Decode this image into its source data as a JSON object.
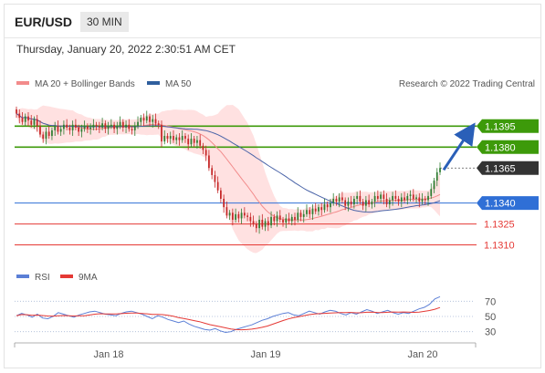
{
  "header": {
    "pair": "EUR/USD",
    "timeframe": "30 MIN",
    "datetime": "Thursday, January 20, 2022 2:30:51 AM CET"
  },
  "legend": {
    "ma20_bb": "MA 20 + Bollinger Bands",
    "ma50": "MA 50",
    "credit": "Research © 2022 Trading Central",
    "rsi": "RSI",
    "rsi_ma": "9MA"
  },
  "colors": {
    "up": "#2f7d32",
    "down": "#c62828",
    "resistance": "#3d9a0a",
    "support_blue": "#2f6fd6",
    "support_red": "#e53935",
    "current": "#333333",
    "band": "#ffc9c9",
    "ma20": "#f28b8b",
    "ma50": "#4a64a8",
    "rsi": "#5b7fd6",
    "rsi_ma": "#e53935"
  },
  "chart_data": {
    "type": "candlestick",
    "instrument": "EUR/USD",
    "interval": "30 MIN",
    "ylim": [
      1.1296,
      1.142
    ],
    "x_ticks": [
      "Jan 18",
      "Jan 19",
      "Jan 20"
    ],
    "levels": [
      {
        "value": 1.1395,
        "label": "1.1395",
        "kind": "resistance"
      },
      {
        "value": 1.138,
        "label": "1.1380",
        "kind": "resistance"
      },
      {
        "value": 1.1365,
        "label": "1.1365",
        "kind": "current"
      },
      {
        "value": 1.134,
        "label": "1.1340",
        "kind": "pivot"
      },
      {
        "value": 1.1325,
        "label": "1.1325",
        "kind": "support"
      },
      {
        "value": 1.131,
        "label": "1.1310",
        "kind": "support"
      }
    ],
    "trend_arrow": {
      "from": 1.1365,
      "to": 1.1395
    },
    "close": [
      1.1404,
      1.1401,
      1.1398,
      1.1402,
      1.1399,
      1.1396,
      1.14,
      1.1395,
      1.1389,
      1.1386,
      1.1391,
      1.1388,
      1.1392,
      1.1395,
      1.1391,
      1.1393,
      1.1396,
      1.1394,
      1.1392,
      1.1396,
      1.1394,
      1.1391,
      1.1393,
      1.1395,
      1.1393,
      1.1394,
      1.1396,
      1.1395,
      1.1394,
      1.1397,
      1.1393,
      1.1395,
      1.1396,
      1.1393,
      1.1395,
      1.1398,
      1.1394,
      1.1396,
      1.1393,
      1.1392,
      1.1395,
      1.1398,
      1.1401,
      1.1399,
      1.1402,
      1.1398,
      1.14,
      1.1397,
      1.1396,
      1.1384,
      1.1388,
      1.1386,
      1.1388,
      1.1385,
      1.1387,
      1.1385,
      1.1388,
      1.1386,
      1.1382,
      1.1386,
      1.1383,
      1.1385,
      1.1381,
      1.1378,
      1.1374,
      1.1365,
      1.136,
      1.1355,
      1.1349,
      1.1343,
      1.1337,
      1.1331,
      1.1333,
      1.1328,
      1.1332,
      1.1329,
      1.1333,
      1.1331,
      1.133,
      1.1327,
      1.1325,
      1.1322,
      1.1328,
      1.1323,
      1.1327,
      1.1324,
      1.133,
      1.1327,
      1.1331,
      1.1328,
      1.1326,
      1.1329,
      1.1327,
      1.133,
      1.1328,
      1.1333,
      1.133,
      1.1332,
      1.1335,
      1.1332,
      1.1336,
      1.1334,
      1.1337,
      1.1335,
      1.1339,
      1.1337,
      1.134,
      1.1343,
      1.1341,
      1.1344,
      1.1342,
      1.1338,
      1.1341,
      1.1339,
      1.1343,
      1.1345,
      1.1341,
      1.1338,
      1.1342,
      1.1339,
      1.1341,
      1.1345,
      1.1343,
      1.1346,
      1.1343,
      1.1339,
      1.1342,
      1.1345,
      1.1343,
      1.1341,
      1.1344,
      1.1342,
      1.1345,
      1.1346,
      1.1343,
      1.1344,
      1.1341,
      1.1343,
      1.1342,
      1.1345,
      1.135,
      1.1356,
      1.1362,
      1.1365
    ],
    "rsi": {
      "ticks": [
        70,
        50,
        30
      ],
      "ylim": [
        20,
        80
      ],
      "values": [
        51,
        54,
        52,
        49,
        53,
        48,
        47,
        50,
        55,
        53,
        51,
        49,
        52,
        54,
        56,
        57,
        55,
        53,
        52,
        51,
        54,
        56,
        57,
        55,
        53,
        50,
        47,
        51,
        49,
        46,
        44,
        42,
        44,
        40,
        37,
        35,
        33,
        32,
        34,
        31,
        29,
        30,
        33,
        35,
        37,
        39,
        42,
        45,
        47,
        50,
        52,
        54,
        55,
        52,
        51,
        54,
        57,
        55,
        53,
        56,
        58,
        57,
        54,
        52,
        55,
        53,
        56,
        59,
        57,
        54,
        56,
        58,
        55,
        53,
        55,
        54,
        57,
        60,
        62,
        66,
        73,
        76
      ]
    }
  }
}
